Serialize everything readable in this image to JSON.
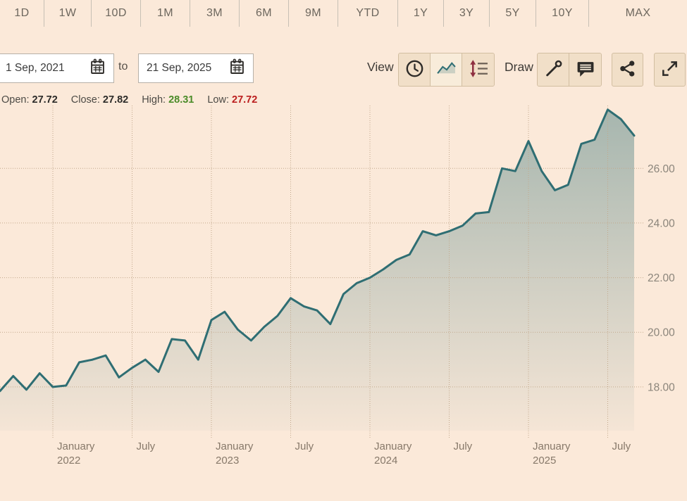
{
  "tabs": [
    "1D",
    "1W",
    "10D",
    "1M",
    "3M",
    "6M",
    "9M",
    "YTD",
    "1Y",
    "3Y",
    "5Y",
    "10Y",
    "MAX"
  ],
  "date_range": {
    "from": "1 Sep, 2021",
    "to_label": "to",
    "to": "21 Sep, 2025"
  },
  "toolbar": {
    "view_label": "View",
    "draw_label": "Draw",
    "view_buttons": [
      "interval-clock-icon",
      "area-chart-icon",
      "scale-lines-icon"
    ],
    "draw_buttons": [
      "trendline-icon",
      "annotation-icon"
    ],
    "extra_buttons": [
      "share-icon",
      "fullscreen-icon"
    ]
  },
  "ohlc": {
    "open_label": "Open:",
    "open": "27.72",
    "close_label": "Close:",
    "close": "27.82",
    "high_label": "High:",
    "high": "28.31",
    "low_label": "Low:",
    "low": "27.72"
  },
  "colors": {
    "background": "#fbe9d9",
    "line": "#2f6e73",
    "grid": "#c2a88c",
    "high_green": "#4a8b28",
    "low_red": "#bb1e1e",
    "scale_arrow_red": "#8e2f40"
  },
  "chart_data": {
    "type": "area",
    "title": "",
    "xlabel": "",
    "ylabel": "",
    "x_unit": "month",
    "categories": [
      "Sep 2021",
      "Oct 2021",
      "Nov 2021",
      "Dec 2021",
      "Jan 2022",
      "Feb 2022",
      "Mar 2022",
      "Apr 2022",
      "May 2022",
      "Jun 2022",
      "Jul 2022",
      "Aug 2022",
      "Sep 2022",
      "Oct 2022",
      "Nov 2022",
      "Dec 2022",
      "Jan 2023",
      "Feb 2023",
      "Mar 2023",
      "Apr 2023",
      "May 2023",
      "Jun 2023",
      "Jul 2023",
      "Aug 2023",
      "Sep 2023",
      "Oct 2023",
      "Nov 2023",
      "Dec 2023",
      "Jan 2024",
      "Feb 2024",
      "Mar 2024",
      "Apr 2024",
      "May 2024",
      "Jun 2024",
      "Jul 2024",
      "Aug 2024",
      "Sep 2024",
      "Oct 2024",
      "Nov 2024",
      "Dec 2024",
      "Jan 2025",
      "Feb 2025",
      "Mar 2025",
      "Apr 2025",
      "May 2025",
      "Jun 2025",
      "Jul 2025",
      "Aug 2025",
      "Sep 2025"
    ],
    "values": [
      17.85,
      18.4,
      17.9,
      18.5,
      18.0,
      18.05,
      18.9,
      19.0,
      19.15,
      18.35,
      18.7,
      19.0,
      18.55,
      19.75,
      19.7,
      19.0,
      20.45,
      20.75,
      20.1,
      19.7,
      20.2,
      20.6,
      21.25,
      20.95,
      20.8,
      20.3,
      21.4,
      21.8,
      22.0,
      22.3,
      22.65,
      22.85,
      23.7,
      23.55,
      23.7,
      23.9,
      24.35,
      24.4,
      26.0,
      25.9,
      27.0,
      25.9,
      25.2,
      25.4,
      26.9,
      27.05,
      28.15,
      27.8,
      27.2
    ],
    "ylim": [
      16.4,
      28.3
    ],
    "yticks": [
      {
        "v": 26,
        "label": "26.00"
      },
      {
        "v": 24,
        "label": "24.00"
      },
      {
        "v": 22,
        "label": "22.00"
      },
      {
        "v": 20,
        "label": "20.00"
      },
      {
        "v": 18,
        "label": "18.00"
      }
    ],
    "xticks": [
      {
        "i": 4,
        "top": "January",
        "bottom": "2022"
      },
      {
        "i": 10,
        "top": "July",
        "bottom": ""
      },
      {
        "i": 16,
        "top": "January",
        "bottom": "2023"
      },
      {
        "i": 22,
        "top": "July",
        "bottom": ""
      },
      {
        "i": 28,
        "top": "January",
        "bottom": "2024"
      },
      {
        "i": 34,
        "top": "July",
        "bottom": ""
      },
      {
        "i": 40,
        "top": "January",
        "bottom": "2025"
      },
      {
        "i": 46,
        "top": "July",
        "bottom": ""
      }
    ],
    "grid": true,
    "legend": false,
    "line_color": "#2f6e73",
    "area_fill_top": "rgba(47,110,115,0.42)",
    "area_fill_bottom": "rgba(47,110,115,0.03)",
    "grid_color": "#c2a88c",
    "axis_label_color": "#87796a"
  }
}
